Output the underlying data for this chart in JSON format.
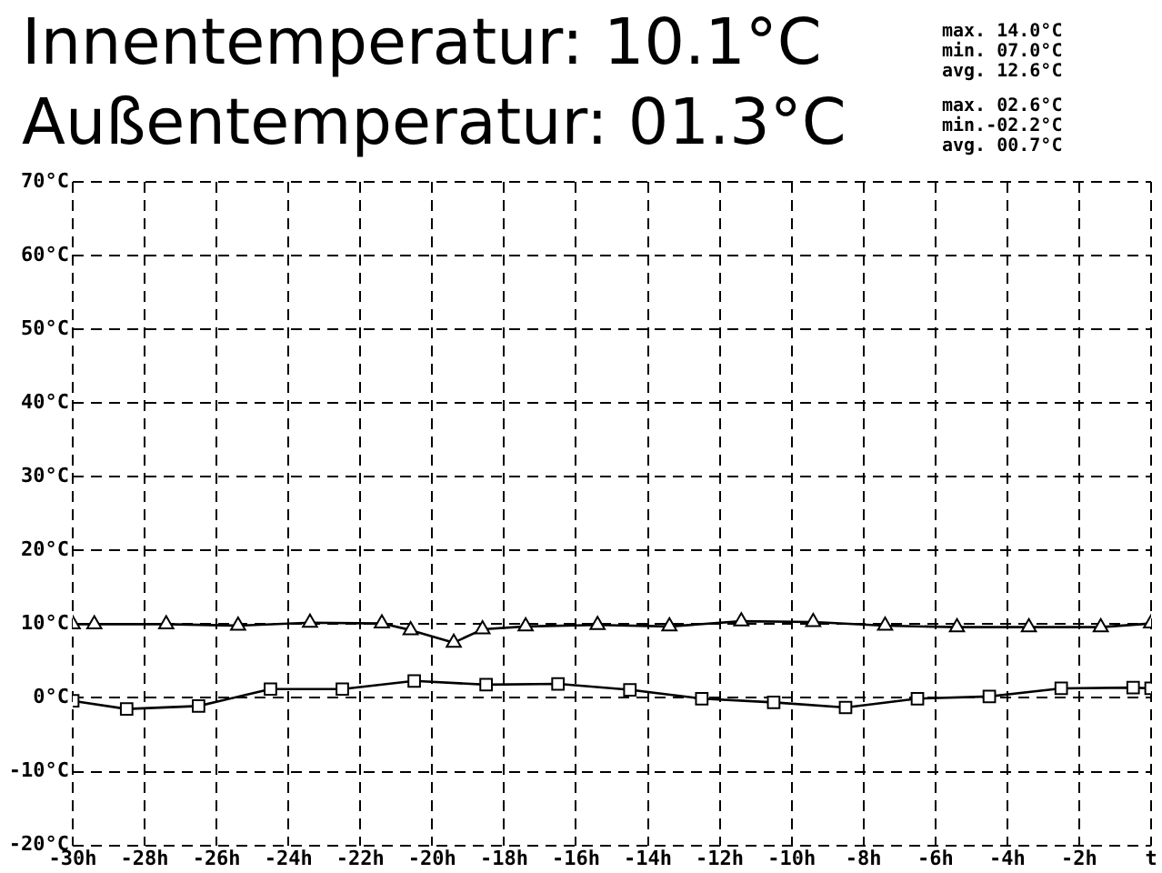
{
  "chart_data": {
    "type": "line",
    "title": "Innentemperatur: 10.1°C",
    "subtitle": "Außentemperatur: 01.3°C",
    "annotations": [
      "max. 14.0°C\nmin. 07.0°C\navg. 12.6°C",
      "max. 02.6°C\nmin.-02.2°C\navg. 00.7°C"
    ],
    "series": [
      {
        "color": "#000000",
        "marker": "triangle",
        "x": [
          -30,
          -29.4,
          -27.4,
          -25.4,
          -23.4,
          -21.4,
          -20.6,
          -19.4,
          -18.6,
          -17.4,
          -15.4,
          -13.4,
          -11.4,
          -9.4,
          -7.4,
          -5.4,
          -3.4,
          -1.4,
          0
        ],
        "values": [
          10.0,
          10.0,
          10.0,
          9.8,
          10.2,
          10.1,
          9.2,
          7.5,
          9.3,
          9.7,
          9.9,
          9.7,
          10.4,
          10.3,
          9.8,
          9.6,
          9.6,
          9.6,
          10.1
        ]
      },
      {
        "color": "#000000",
        "marker": "square",
        "x": [
          -30,
          -28.5,
          -26.5,
          -24.5,
          -22.5,
          -20.5,
          -18.5,
          -16.5,
          -14.5,
          -12.5,
          -10.5,
          -8.5,
          -6.5,
          -4.5,
          -2.5,
          -0.5,
          0
        ],
        "values": [
          -0.4,
          -1.5,
          -1.1,
          1.2,
          1.2,
          2.3,
          1.8,
          1.9,
          1.1,
          -0.1,
          -0.6,
          -1.3,
          -0.1,
          0.2,
          1.3,
          1.4,
          1.3
        ]
      }
    ],
    "xlim": [
      -30,
      0
    ],
    "xticks": [
      {
        "value": -30,
        "label": "-30h"
      },
      {
        "value": -28,
        "label": "-28h"
      },
      {
        "value": -26,
        "label": "-26h"
      },
      {
        "value": -24,
        "label": "-24h"
      },
      {
        "value": -22,
        "label": "-22h"
      },
      {
        "value": -20,
        "label": "-20h"
      },
      {
        "value": -18,
        "label": "-18h"
      },
      {
        "value": -16,
        "label": "-16h"
      },
      {
        "value": -14,
        "label": "-14h"
      },
      {
        "value": -12,
        "label": "-12h"
      },
      {
        "value": -10,
        "label": "-10h"
      },
      {
        "value": -8,
        "label": "-8h"
      },
      {
        "value": -6,
        "label": "-6h"
      },
      {
        "value": -4,
        "label": "-4h"
      },
      {
        "value": -2,
        "label": "-2h"
      },
      {
        "value": 0,
        "label": "t"
      }
    ],
    "ylim": [
      -20,
      70
    ],
    "yticks": [
      {
        "value": -20,
        "label": "-20°C"
      },
      {
        "value": -10,
        "label": "-10°C"
      },
      {
        "value": 0,
        "label": "0°C"
      },
      {
        "value": 10,
        "label": "10°C"
      },
      {
        "value": 20,
        "label": "20°C"
      },
      {
        "value": 30,
        "label": "30°C"
      },
      {
        "value": 40,
        "label": "40°C"
      },
      {
        "value": 50,
        "label": "50°C"
      },
      {
        "value": 60,
        "label": "60°C"
      },
      {
        "value": 70,
        "label": "70°C"
      }
    ],
    "grid": true,
    "legend": false,
    "line_style": "solid"
  }
}
